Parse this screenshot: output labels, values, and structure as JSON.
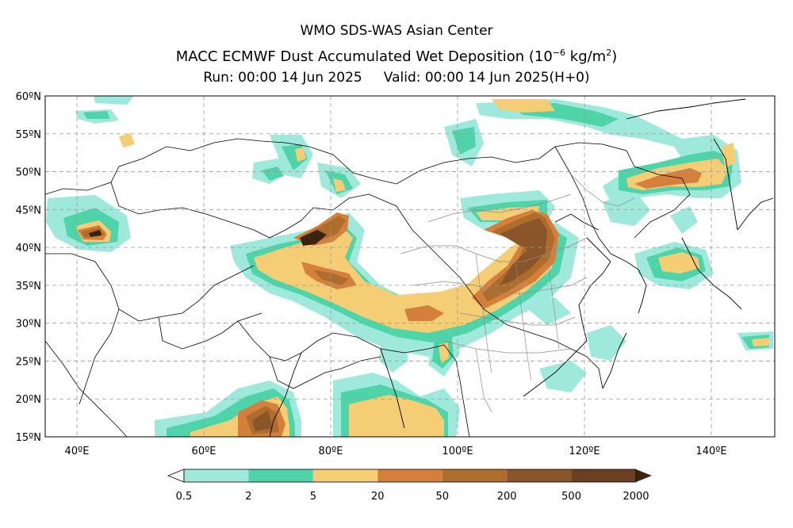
{
  "header": {
    "org": "WMO SDS-WAS Asian Center",
    "product_prefix": "MACC ECMWF Dust Accumulated Wet Deposition (10",
    "product_exp": "−6",
    "product_units": " kg/m",
    "product_units_exp": "2",
    "product_suffix": ")",
    "run": "Run: 00:00 14 Jun 2025",
    "valid": "Valid: 00:00 14 Jun 2025(H+0)"
  },
  "map": {
    "lon_range": [
      35,
      150
    ],
    "lat_range": [
      15,
      60
    ],
    "lat_ticks": [
      {
        "value": 60,
        "label": "60ºN"
      },
      {
        "value": 55,
        "label": "55ºN"
      },
      {
        "value": 50,
        "label": "50ºN"
      },
      {
        "value": 45,
        "label": "45ºN"
      },
      {
        "value": 40,
        "label": "40ºN"
      },
      {
        "value": 35,
        "label": "35ºN"
      },
      {
        "value": 30,
        "label": "30ºN"
      },
      {
        "value": 25,
        "label": "25ºN"
      },
      {
        "value": 20,
        "label": "20ºN"
      },
      {
        "value": 15,
        "label": "15ºN"
      }
    ],
    "lon_ticks": [
      {
        "value": 40,
        "label": "40ºE"
      },
      {
        "value": 60,
        "label": "60ºE"
      },
      {
        "value": 80,
        "label": "80ºE"
      },
      {
        "value": 100,
        "label": "100ºE"
      },
      {
        "value": 120,
        "label": "120ºE"
      },
      {
        "value": 140,
        "label": "140ºE"
      }
    ],
    "grid": true
  },
  "colorbar": {
    "levels": [
      "0.5",
      "2",
      "5",
      "20",
      "50",
      "200",
      "500",
      "2000"
    ],
    "colors": [
      "#9ee8dc",
      "#4fd3a8",
      "#f4cd74",
      "#d4803c",
      "#ad6d2c",
      "#8a5528",
      "#6a4020",
      "#3a2410"
    ],
    "lower_extend_color": "#ffffff",
    "upper_extend_color": "#3a2410"
  }
}
